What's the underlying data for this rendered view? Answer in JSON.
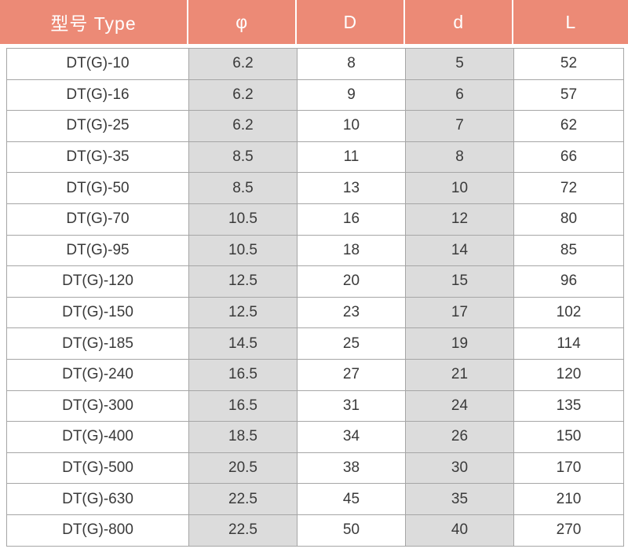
{
  "header": {
    "type": "型号 Type",
    "phi": "φ",
    "D": "D",
    "d": "d",
    "L": "L"
  },
  "header_color": "#ec8a76",
  "shade_color": "#dcdcdc",
  "rows": [
    {
      "type": "DT(G)-10",
      "phi": "6.2",
      "D": "8",
      "d": "5",
      "L": "52"
    },
    {
      "type": "DT(G)-16",
      "phi": "6.2",
      "D": "9",
      "d": "6",
      "L": "57"
    },
    {
      "type": "DT(G)-25",
      "phi": "6.2",
      "D": "10",
      "d": "7",
      "L": "62"
    },
    {
      "type": "DT(G)-35",
      "phi": "8.5",
      "D": "11",
      "d": "8",
      "L": "66"
    },
    {
      "type": "DT(G)-50",
      "phi": "8.5",
      "D": "13",
      "d": "10",
      "L": "72"
    },
    {
      "type": "DT(G)-70",
      "phi": "10.5",
      "D": "16",
      "d": "12",
      "L": "80"
    },
    {
      "type": "DT(G)-95",
      "phi": "10.5",
      "D": "18",
      "d": "14",
      "L": "85"
    },
    {
      "type": "DT(G)-120",
      "phi": "12.5",
      "D": "20",
      "d": "15",
      "L": "96"
    },
    {
      "type": "DT(G)-150",
      "phi": "12.5",
      "D": "23",
      "d": "17",
      "L": "102"
    },
    {
      "type": "DT(G)-185",
      "phi": "14.5",
      "D": "25",
      "d": "19",
      "L": "114"
    },
    {
      "type": "DT(G)-240",
      "phi": "16.5",
      "D": "27",
      "d": "21",
      "L": "120"
    },
    {
      "type": "DT(G)-300",
      "phi": "16.5",
      "D": "31",
      "d": "24",
      "L": "135"
    },
    {
      "type": "DT(G)-400",
      "phi": "18.5",
      "D": "34",
      "d": "26",
      "L": "150"
    },
    {
      "type": "DT(G)-500",
      "phi": "20.5",
      "D": "38",
      "d": "30",
      "L": "170"
    },
    {
      "type": "DT(G)-630",
      "phi": "22.5",
      "D": "45",
      "d": "35",
      "L": "210"
    },
    {
      "type": "DT(G)-800",
      "phi": "22.5",
      "D": "50",
      "d": "40",
      "L": "270"
    }
  ]
}
